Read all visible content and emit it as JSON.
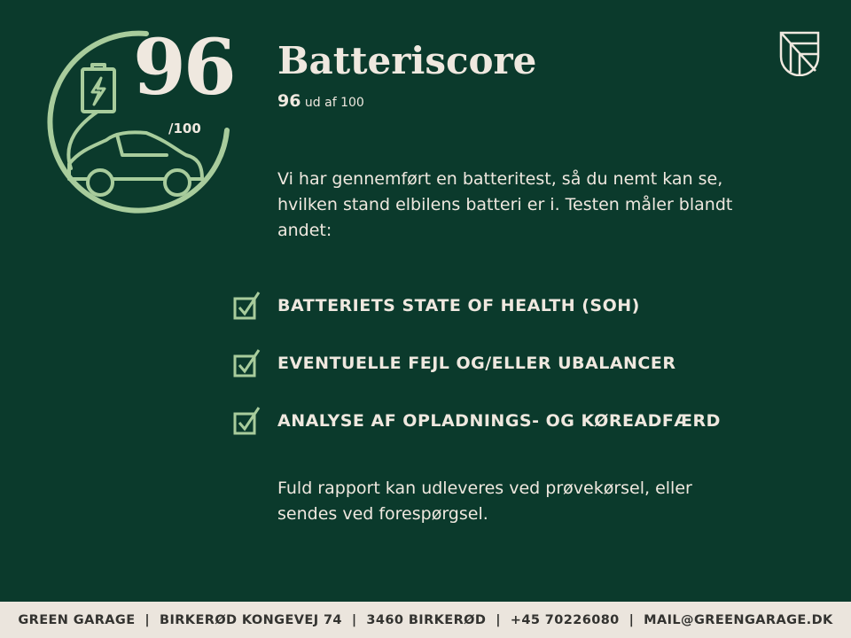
{
  "badge": {
    "score": "96",
    "out_of": "/100",
    "icon": "battery-car-charging-icon",
    "accent": "#a8cc9c"
  },
  "header": {
    "title": "Batteriscore",
    "score": "96",
    "score_suffix": "ud af 100"
  },
  "intro": "Vi har gennemført en batteritest, så du nemt kan se, hvilken stand elbilens batteri er i. Testen måler blandt andet:",
  "checks": [
    {
      "label": "BATTERIETS STATE OF HEALTH (SOH)"
    },
    {
      "label": "EVENTUELLE FEJL OG/ELLER UBALANCER"
    },
    {
      "label": "ANALYSE AF OPLADNINGS- OG KØREADFÆRD"
    }
  ],
  "outro": "Fuld rapport kan udleveres ved prøvekørsel, eller sendes ved forespørgsel.",
  "logo": {
    "icon": "shield-logo-icon"
  },
  "footer": {
    "text": "GREEN GARAGE  |  BIRKERØD KONGEVEJ 74  |  3460 BIRKERØD  |  +45 70226080  |  MAIL@GREENGARAGE.DK"
  },
  "colors": {
    "background": "#0b3a2c",
    "accent": "#a8cc9c",
    "text": "#efe8df",
    "footer_bg": "#ebe5dd"
  }
}
